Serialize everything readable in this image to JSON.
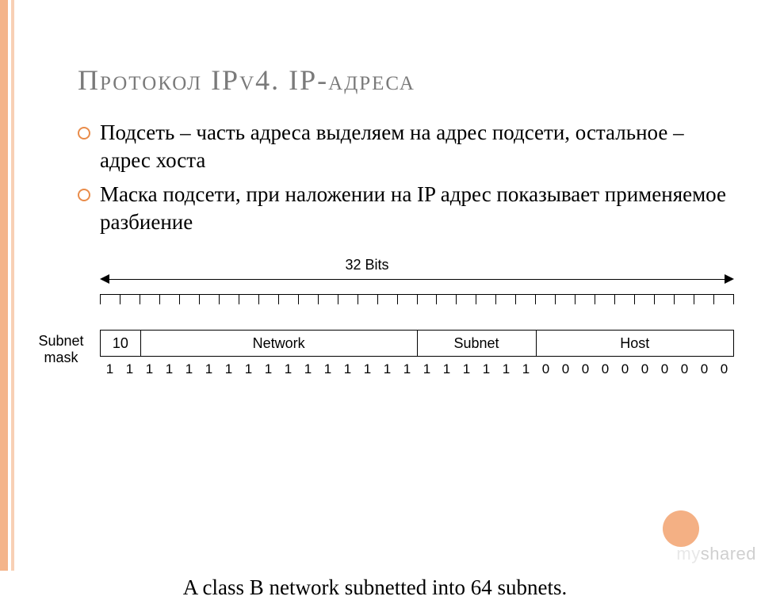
{
  "title": "Протокол IPv4. IP-адреса",
  "bullets": [
    "Подсеть – часть адреса выделяем на адрес подсети, остальное – адрес хоста",
    "Маска подсети, при наложении на IP адрес показывает применяемое разбиение"
  ],
  "diagram": {
    "total_bits_label": "32 Bits",
    "tick_count": 32,
    "side_label_line1": "Subnet",
    "side_label_line2": "mask",
    "fields": [
      {
        "label": "10",
        "bits": 2,
        "class": "f10"
      },
      {
        "label": "Network",
        "bits": 14,
        "class": "fnet"
      },
      {
        "label": "Subnet",
        "bits": 6,
        "class": "fsub"
      },
      {
        "label": "Host",
        "bits": 10,
        "class": "fhost"
      }
    ],
    "mask_bits": [
      1,
      1,
      1,
      1,
      1,
      1,
      1,
      1,
      1,
      1,
      1,
      1,
      1,
      1,
      1,
      1,
      1,
      1,
      1,
      1,
      1,
      1,
      0,
      0,
      0,
      0,
      0,
      0,
      0,
      0,
      0,
      0
    ]
  },
  "caption": "A class B network subnetted into 64 subnets.",
  "watermark": {
    "my": "my",
    "shared": "shared"
  },
  "colors": {
    "stripe_outer": "#f4b48a",
    "stripe_inner": "#f8d0b5",
    "bullet_ring": "#e98c4a",
    "corner_circle": "#f4b084",
    "title_text": "#7a7a7a"
  }
}
